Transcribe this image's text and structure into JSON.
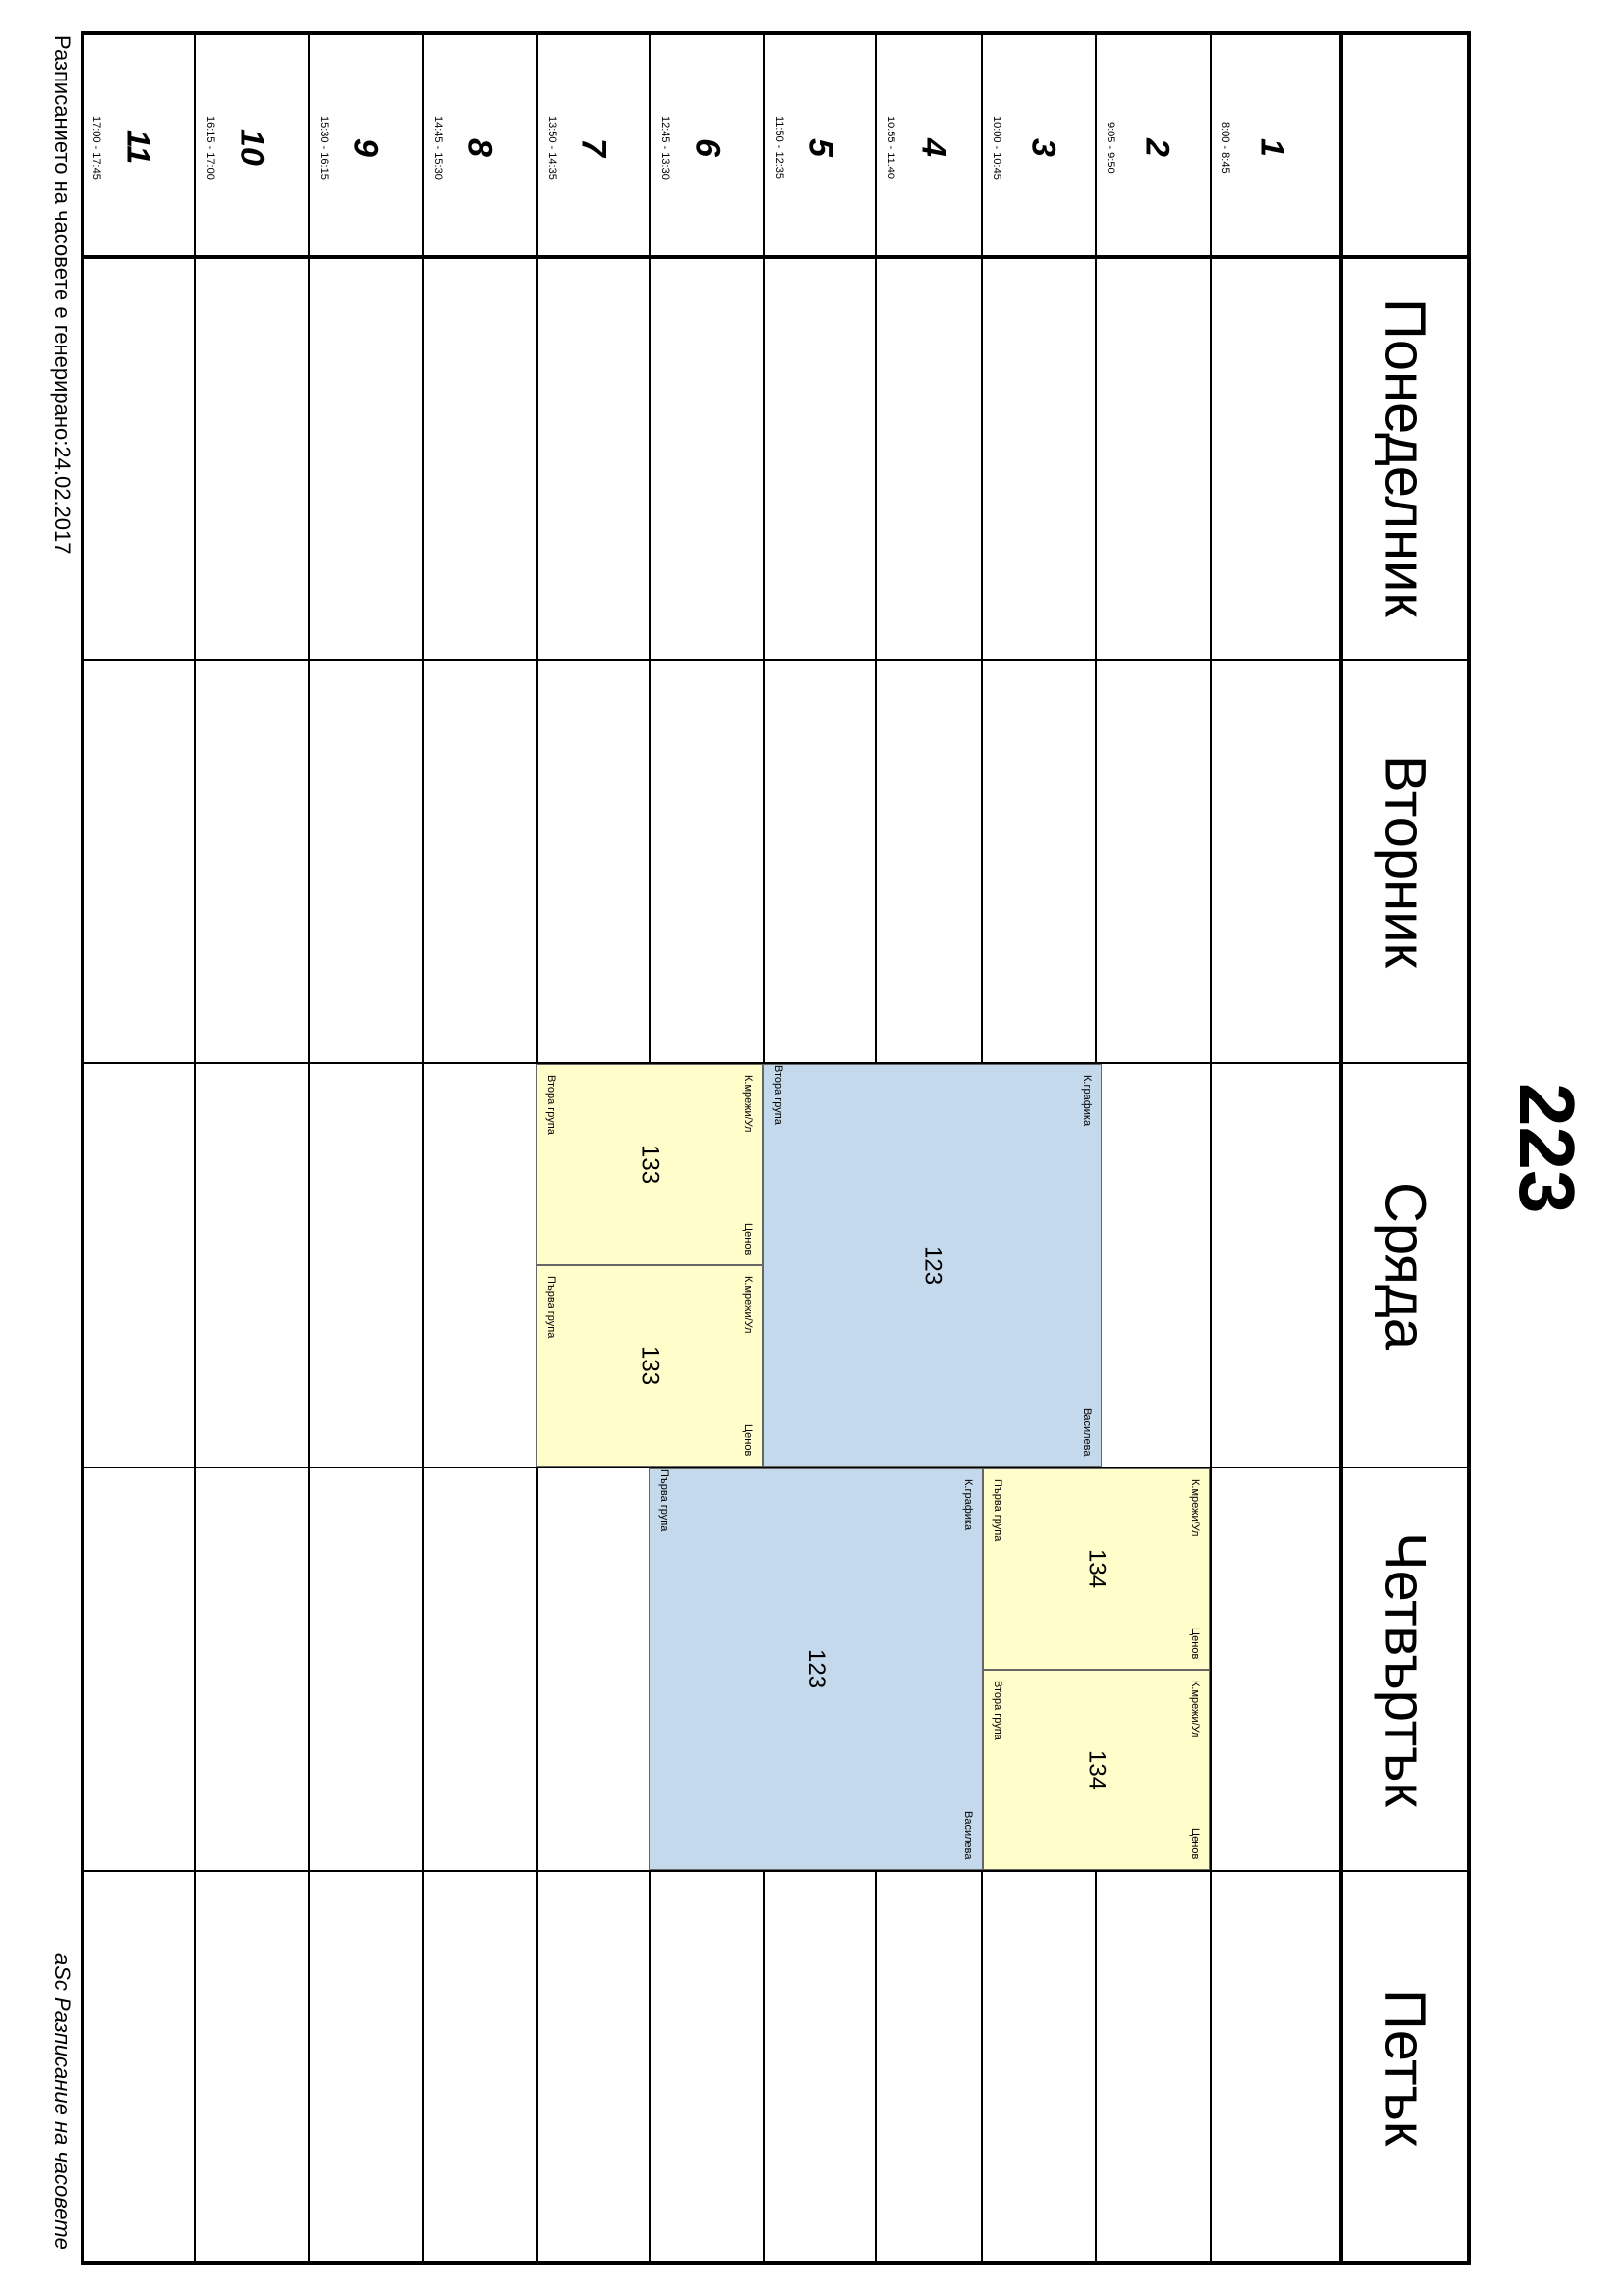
{
  "title": "223",
  "days": [
    "Понеделник",
    "Вторник",
    "Сряда",
    "Четвъртък",
    "Петък"
  ],
  "periods": [
    {
      "num": "1",
      "time": "8:00 - 8:45"
    },
    {
      "num": "2",
      "time": "9:05 - 9:50"
    },
    {
      "num": "3",
      "time": "10:00 - 10:45"
    },
    {
      "num": "4",
      "time": "10:55 - 11:40"
    },
    {
      "num": "5",
      "time": "11:50 - 12:35"
    },
    {
      "num": "6",
      "time": "12:45 - 13:30"
    },
    {
      "num": "7",
      "time": "13:50 - 14:35"
    },
    {
      "num": "8",
      "time": "14:45 - 15:30"
    },
    {
      "num": "9",
      "time": "15:30 - 16:15"
    },
    {
      "num": "10",
      "time": "16:15 - 17:00"
    },
    {
      "num": "11",
      "time": "17:00 - 17:45"
    }
  ],
  "lessons": {
    "wed_graphics": {
      "subject": "К.графика",
      "room": "123",
      "group": "Втора група",
      "teacher": "Василева"
    },
    "wed_net_a": {
      "subject": "К.мрежи/Ул",
      "room": "133",
      "group": "Втора група",
      "teacher": "Ценов"
    },
    "wed_net_b": {
      "subject": "К.мрежи/Ул",
      "room": "133",
      "group": "Първа група",
      "teacher": "Ценов"
    },
    "thu_net_a": {
      "subject": "К.мрежи/Ул",
      "room": "134",
      "group": "Първа група",
      "teacher": "Ценов"
    },
    "thu_net_b": {
      "subject": "К.мрежи/Ул",
      "room": "134",
      "group": "Втора група",
      "teacher": "Ценов"
    },
    "thu_graphics": {
      "subject": "К.графика",
      "room": "123",
      "group": "Първа група",
      "teacher": "Василева"
    }
  },
  "colors": {
    "blue": "#c5d9ec",
    "yellow": "#fffdc9"
  },
  "footer": {
    "generated": "Разписанието на часовете е генерирано:24.02.2017",
    "brand": "aSc Разписание на часовете"
  }
}
